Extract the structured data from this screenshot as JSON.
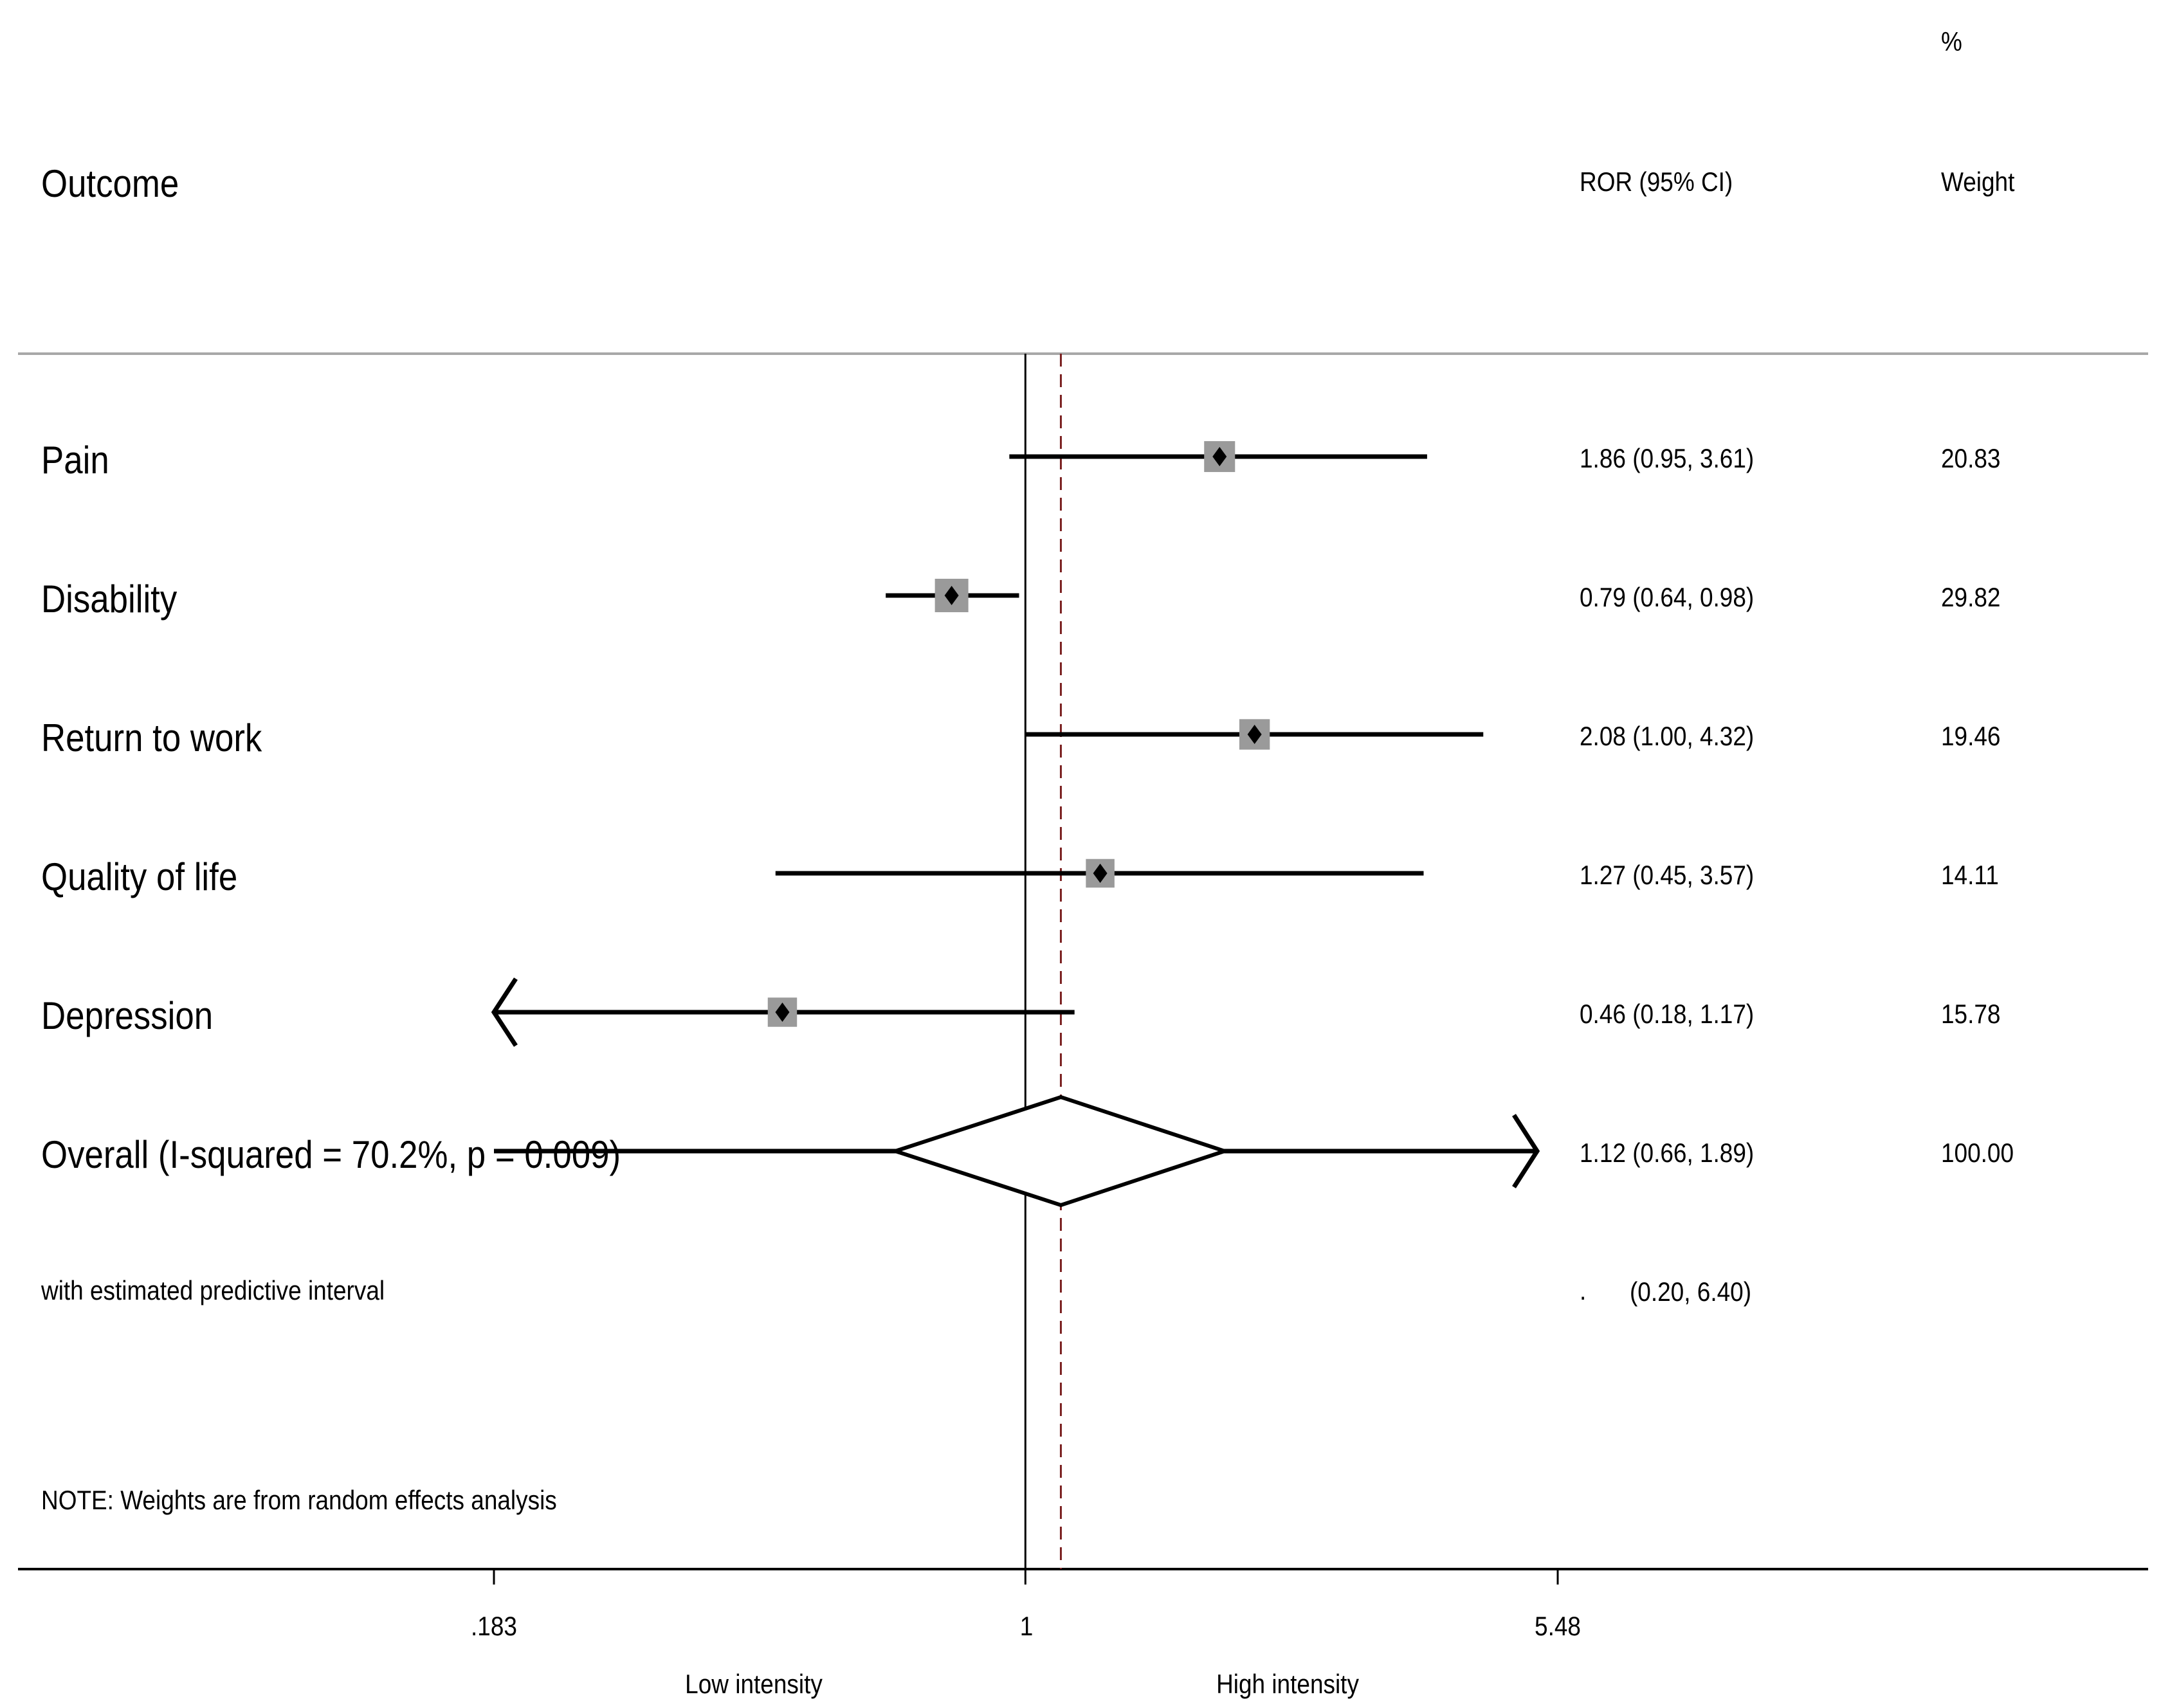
{
  "header": {
    "col_outcome": "Outcome",
    "col_ror": "ROR (95% CI)",
    "col_weight_pct": "%",
    "col_weight": "Weight"
  },
  "rows": [
    {
      "label": "Pain",
      "ror_text": "1.86 (0.95, 3.61)",
      "weight_text": "20.83"
    },
    {
      "label": "Disability",
      "ror_text": "0.79 (0.64, 0.98)",
      "weight_text": "29.82"
    },
    {
      "label": "Return to work",
      "ror_text": "2.08 (1.00, 4.32)",
      "weight_text": "19.46"
    },
    {
      "label": "Quality of life",
      "ror_text": "1.27 (0.45, 3.57)",
      "weight_text": "14.11"
    },
    {
      "label": "Depression",
      "ror_text": "0.46 (0.18, 1.17)",
      "weight_text": "15.78"
    }
  ],
  "overall": {
    "label": "Overall  (I-squared = 70.2%, p = 0.009)",
    "ror_text": "1.12 (0.66, 1.89)",
    "weight_text": "100.00"
  },
  "predictive": {
    "label": "with estimated predictive interval",
    "dot": ".",
    "ci_text": "(0.20, 6.40)"
  },
  "note": "NOTE: Weights are from random effects analysis",
  "axis": {
    "ticks": [
      ".183",
      "1",
      "5.48"
    ],
    "left_label": "Low intensity",
    "right_label": "High intensity"
  },
  "chart_data": {
    "type": "forest",
    "title": "",
    "xlabel": "",
    "ylabel": "",
    "scale": "log",
    "xlim": [
      0.183,
      5.48
    ],
    "x_ticks": [
      0.183,
      1,
      5.48
    ],
    "null_line": 1,
    "pooled_line": 1.12,
    "studies": [
      {
        "name": "Pain",
        "ror": 1.86,
        "lower": 0.95,
        "upper": 3.61,
        "weight": 20.83
      },
      {
        "name": "Disability",
        "ror": 0.79,
        "lower": 0.64,
        "upper": 0.98,
        "weight": 29.82
      },
      {
        "name": "Return to work",
        "ror": 2.08,
        "lower": 1.0,
        "upper": 4.32,
        "weight": 19.46
      },
      {
        "name": "Quality of life",
        "ror": 1.27,
        "lower": 0.45,
        "upper": 3.57,
        "weight": 14.11
      },
      {
        "name": "Depression",
        "ror": 0.46,
        "lower": 0.18,
        "upper": 1.17,
        "weight": 15.78
      }
    ],
    "pooled": {
      "ror": 1.12,
      "lower": 0.66,
      "upper": 1.89,
      "weight": 100.0
    },
    "prediction_interval": {
      "lower": 0.2,
      "upper": 6.4
    },
    "i_squared_pct": 70.2,
    "p_value": 0.009,
    "colors": {
      "ink": "#000000",
      "box": "#9a9a9a",
      "ref_line": "#7a1f1f",
      "rule": "#a8a8a8"
    }
  }
}
